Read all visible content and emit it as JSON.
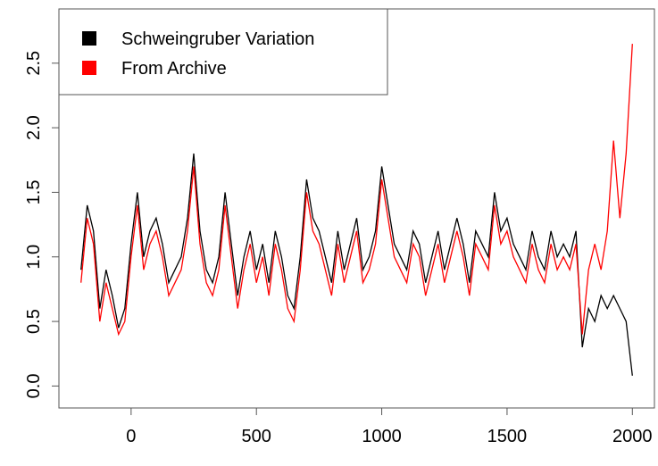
{
  "chart_data": {
    "type": "line",
    "x": [
      -200,
      -175,
      -150,
      -125,
      -100,
      -75,
      -50,
      -25,
      0,
      25,
      50,
      75,
      100,
      125,
      150,
      175,
      200,
      225,
      250,
      275,
      300,
      325,
      350,
      375,
      400,
      425,
      450,
      475,
      500,
      525,
      550,
      575,
      600,
      625,
      650,
      675,
      700,
      725,
      750,
      775,
      800,
      825,
      850,
      875,
      900,
      925,
      950,
      975,
      1000,
      1025,
      1050,
      1075,
      1100,
      1125,
      1150,
      1175,
      1200,
      1225,
      1250,
      1275,
      1300,
      1325,
      1350,
      1375,
      1400,
      1425,
      1450,
      1475,
      1500,
      1525,
      1550,
      1575,
      1600,
      1625,
      1650,
      1675,
      1700,
      1725,
      1750,
      1775,
      1800,
      1825,
      1850,
      1875,
      1900,
      1925,
      1950,
      1975,
      2000
    ],
    "series": [
      {
        "name": "Schweingruber Variation",
        "color": "#000000",
        "values": [
          0.9,
          1.4,
          1.2,
          0.6,
          0.9,
          0.7,
          0.45,
          0.6,
          1.1,
          1.5,
          1.0,
          1.2,
          1.3,
          1.1,
          0.8,
          0.9,
          1.0,
          1.3,
          1.8,
          1.2,
          0.9,
          0.8,
          1.0,
          1.5,
          1.1,
          0.7,
          1.0,
          1.2,
          0.9,
          1.1,
          0.8,
          1.2,
          1.0,
          0.7,
          0.6,
          1.0,
          1.6,
          1.3,
          1.2,
          1.0,
          0.8,
          1.2,
          0.9,
          1.1,
          1.3,
          0.9,
          1.0,
          1.2,
          1.7,
          1.4,
          1.1,
          1.0,
          0.9,
          1.2,
          1.1,
          0.8,
          1.0,
          1.2,
          0.9,
          1.1,
          1.3,
          1.1,
          0.8,
          1.2,
          1.1,
          1.0,
          1.5,
          1.2,
          1.3,
          1.1,
          1.0,
          0.9,
          1.2,
          1.0,
          0.9,
          1.2,
          1.0,
          1.1,
          1.0,
          1.2,
          0.3,
          0.6,
          0.5,
          0.7,
          0.6,
          0.7,
          0.6,
          0.5,
          0.08
        ]
      },
      {
        "name": "From Archive",
        "color": "#ff0000",
        "values": [
          0.8,
          1.3,
          1.1,
          0.5,
          0.8,
          0.6,
          0.4,
          0.5,
          1.0,
          1.4,
          0.9,
          1.1,
          1.2,
          1.0,
          0.7,
          0.8,
          0.9,
          1.2,
          1.7,
          1.1,
          0.8,
          0.7,
          0.9,
          1.4,
          1.0,
          0.6,
          0.9,
          1.1,
          0.8,
          1.0,
          0.7,
          1.1,
          0.9,
          0.6,
          0.5,
          0.9,
          1.5,
          1.2,
          1.1,
          0.9,
          0.7,
          1.1,
          0.8,
          1.0,
          1.2,
          0.8,
          0.9,
          1.1,
          1.6,
          1.3,
          1.0,
          0.9,
          0.8,
          1.1,
          1.0,
          0.7,
          0.9,
          1.1,
          0.8,
          1.0,
          1.2,
          1.0,
          0.7,
          1.1,
          1.0,
          0.9,
          1.4,
          1.1,
          1.2,
          1.0,
          0.9,
          0.8,
          1.1,
          0.9,
          0.8,
          1.1,
          0.9,
          1.0,
          0.9,
          1.1,
          0.4,
          0.9,
          1.1,
          0.9,
          1.2,
          1.9,
          1.3,
          1.8,
          2.65
        ]
      }
    ],
    "xlim": [
      -288,
      2088
    ],
    "ylim": [
      -0.17,
      2.92
    ],
    "xticks": [
      0,
      500,
      1000,
      1500,
      2000
    ],
    "yticks": [
      {
        "value": 0,
        "label": "0.0"
      },
      {
        "value": 0.5,
        "label": "0.5"
      },
      {
        "value": 1,
        "label": "1.0"
      },
      {
        "value": 1.5,
        "label": "1.5"
      },
      {
        "value": 2,
        "label": "2.0"
      },
      {
        "value": 2.5,
        "label": "2.5"
      }
    ],
    "legend": "top-left"
  }
}
